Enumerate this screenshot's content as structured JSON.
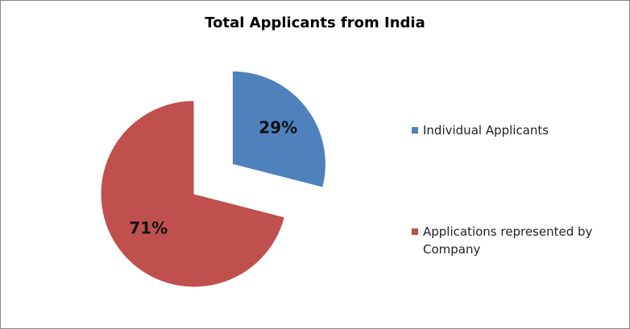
{
  "chart_data": {
    "type": "pie",
    "title": "Total Applicants from India",
    "categories": [
      "Individual Applicants",
      "Applications represented by Company"
    ],
    "values": [
      29,
      71
    ],
    "value_labels": [
      "29%",
      "71%"
    ],
    "colors": [
      "#4f81bd",
      "#c0504d"
    ],
    "legend": "right"
  }
}
